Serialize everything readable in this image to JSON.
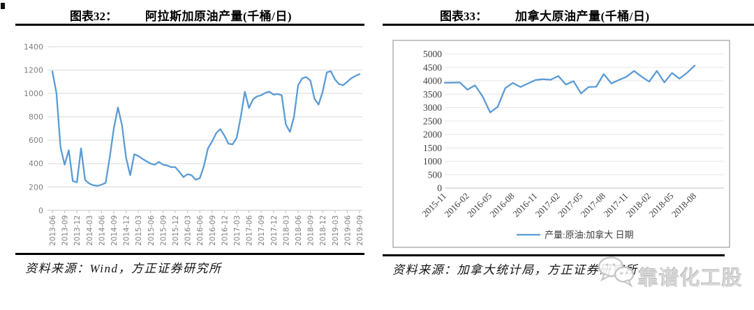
{
  "page": {
    "background": "#ffffff"
  },
  "figure_left": {
    "label": "图表32：",
    "title": "阿拉斯加原油产量(千桶/日)",
    "source": "资料来源：Wind，方正证券研究所"
  },
  "figure_right": {
    "label": "图表33：",
    "title": "加拿大原油产量(千桶/日)",
    "source": "资料来源：加拿大统计局，方正证券研究所",
    "watermark": "靠谱化工股"
  },
  "colors": {
    "line": "#5B9BD5",
    "grid_left": "#d9d9d9",
    "grid_right": "#e6e6e6",
    "axis": "#c0c0c0",
    "label_left": "#7f7f7f",
    "label_right": "#3d3d3d",
    "box_border": "#9e9e9e"
  },
  "chart_data": [
    {
      "id": "alaska",
      "type": "line",
      "title": "阿拉斯加原油产量(千桶/日)",
      "x_start": "2013-06",
      "x_frequency": "monthly",
      "label_every": 3,
      "x_tick_labels": [
        "2013-06",
        "2013-09",
        "2013-12",
        "2014-03",
        "2014-06",
        "2014-09",
        "2014-12",
        "2015-03",
        "2015-06",
        "2015-09",
        "2015-12",
        "2016-03",
        "2016-06",
        "2016-09",
        "2016-12",
        "2017-03",
        "2017-06",
        "2017-09",
        "2017-12",
        "2018-03",
        "2018-06",
        "2018-09",
        "2018-12",
        "2019-03",
        "2019-06",
        "2019-09"
      ],
      "values": [
        1190,
        1000,
        540,
        390,
        515,
        250,
        240,
        530,
        260,
        230,
        215,
        210,
        220,
        235,
        450,
        700,
        880,
        730,
        450,
        300,
        480,
        465,
        440,
        420,
        400,
        390,
        415,
        390,
        385,
        370,
        370,
        330,
        285,
        310,
        300,
        262,
        275,
        380,
        530,
        590,
        660,
        695,
        640,
        570,
        565,
        620,
        800,
        1015,
        875,
        950,
        975,
        985,
        1005,
        1015,
        990,
        995,
        985,
        735,
        670,
        800,
        1070,
        1130,
        1140,
        1110,
        955,
        905,
        1015,
        1180,
        1190,
        1120,
        1080,
        1070,
        1100,
        1130,
        1150,
        1165
      ],
      "ylim": [
        0,
        1400
      ],
      "yticks": [
        0,
        200,
        400,
        600,
        800,
        1000,
        1200,
        1400
      ],
      "grid": true,
      "legend": null,
      "boxed": false,
      "x_label_rotation": -90
    },
    {
      "id": "canada",
      "type": "line",
      "title": "加拿大原油产量(千桶/日)",
      "x_start": "2015-11",
      "x_frequency": "monthly",
      "label_every": 3,
      "x_tick_labels": [
        "2015-11",
        "2016-02",
        "2016-05",
        "2016-08",
        "2016-11",
        "2017-02",
        "2017-05",
        "2017-08",
        "2017-11",
        "2018-02",
        "2018-05",
        "2018-08"
      ],
      "values": [
        3930,
        3930,
        3940,
        3670,
        3830,
        3420,
        2820,
        3030,
        3730,
        3920,
        3770,
        3900,
        4030,
        4060,
        4040,
        4180,
        3860,
        3990,
        3530,
        3770,
        3780,
        4250,
        3900,
        4030,
        4150,
        4370,
        4150,
        3970,
        4370,
        3940,
        4290,
        4080,
        4300,
        4570
      ],
      "ylim": [
        0,
        5000
      ],
      "yticks": [
        0,
        500,
        1000,
        1500,
        2000,
        2500,
        3000,
        3500,
        4000,
        4500,
        5000
      ],
      "grid": true,
      "legend": "产量:原油:加拿大 日期",
      "legend_position": "bottom",
      "boxed": true,
      "x_label_rotation": -45
    }
  ]
}
